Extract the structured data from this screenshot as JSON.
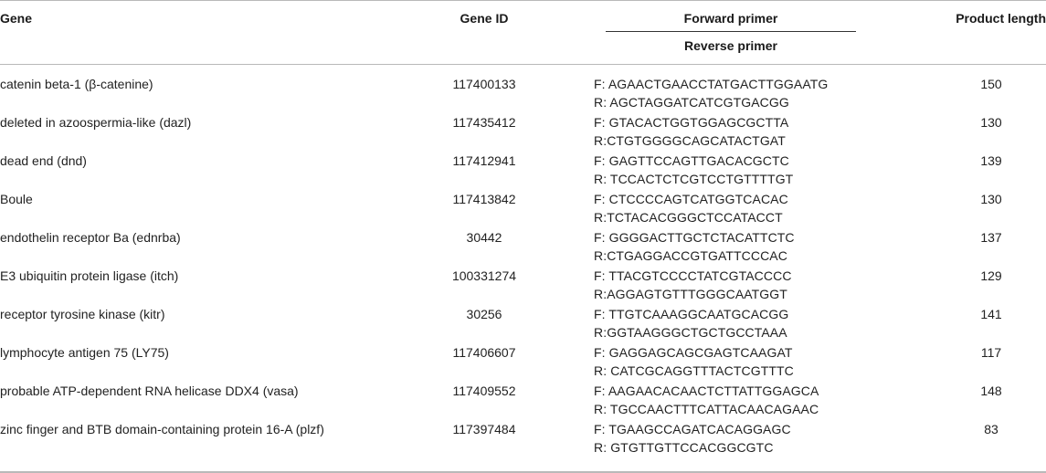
{
  "headers": {
    "gene": "Gene",
    "gene_id": "Gene ID",
    "forward_primer": "Forward primer",
    "reverse_primer": "Reverse primer",
    "product_length": "Product length"
  },
  "rows": [
    {
      "gene": "catenin beta-1 (β-catenine)",
      "id": "117400133",
      "forward": "F: AGAACTGAACCTATGACTTGGAATG",
      "reverse": "R: AGCTAGGATCATCGTGACGG",
      "length": "150"
    },
    {
      "gene": "deleted in azoospermia-like (dazl)",
      "id": "117435412",
      "forward": "F: GTACACTGGTGGAGCGCTTA",
      "reverse": "R:CTGTGGGGCAGCATACTGAT",
      "length": "130"
    },
    {
      "gene": "dead end (dnd)",
      "id": "117412941",
      "forward": "F: GAGTTCCAGTTGACACGCTC",
      "reverse": "R: TCCACTCTCGTCCTGTTTTGT",
      "length": "139"
    },
    {
      "gene": "Boule",
      "id": "117413842",
      "forward": "F: CTCCCCAGTCATGGTCACAC",
      "reverse": "R:TCTACACGGGCTCCATACCT",
      "length": "130"
    },
    {
      "gene": "endothelin receptor Ba (ednrba)",
      "id": "30442",
      "forward": "F: GGGGACTTGCTCTACATTCTC",
      "reverse": "R:CTGAGGACCGTGATTCCCAC",
      "length": "137"
    },
    {
      "gene": "E3 ubiquitin protein ligase (itch)",
      "id": "100331274",
      "forward": "F: TTACGTCCCCTATCGTACCCC",
      "reverse": "R:AGGAGTGTTTGGGCAATGGT",
      "length": "129"
    },
    {
      "gene": "receptor tyrosine kinase (kitr)",
      "id": "30256",
      "forward": "F: TTGTCAAAGGCAATGCACGG",
      "reverse": "R:GGTAAGGGCTGCTGCCTAAA",
      "length": "141"
    },
    {
      "gene": "lymphocyte antigen 75 (LY75)",
      "id": "117406607",
      "forward": "F: GAGGAGCAGCGAGTCAAGAT",
      "reverse": "R: CATCGCAGGTTTACTCGTTTC",
      "length": "117"
    },
    {
      "gene": "probable ATP-dependent RNA helicase DDX4 (vasa)",
      "id": "117409552",
      "forward": "F: AAGAACACAACTCTTATTGGAGCA",
      "reverse": "R: TGCCAACTTTCATTACAACAGAAC",
      "length": "148"
    },
    {
      "gene": "zinc finger and BTB domain-containing protein 16-A (plzf)",
      "id": "117397484",
      "forward": "F: TGAAGCCAGATCACAGGAGC",
      "reverse": "R: GTGTTGTTCCACGGCGTC",
      "length": "83"
    }
  ]
}
